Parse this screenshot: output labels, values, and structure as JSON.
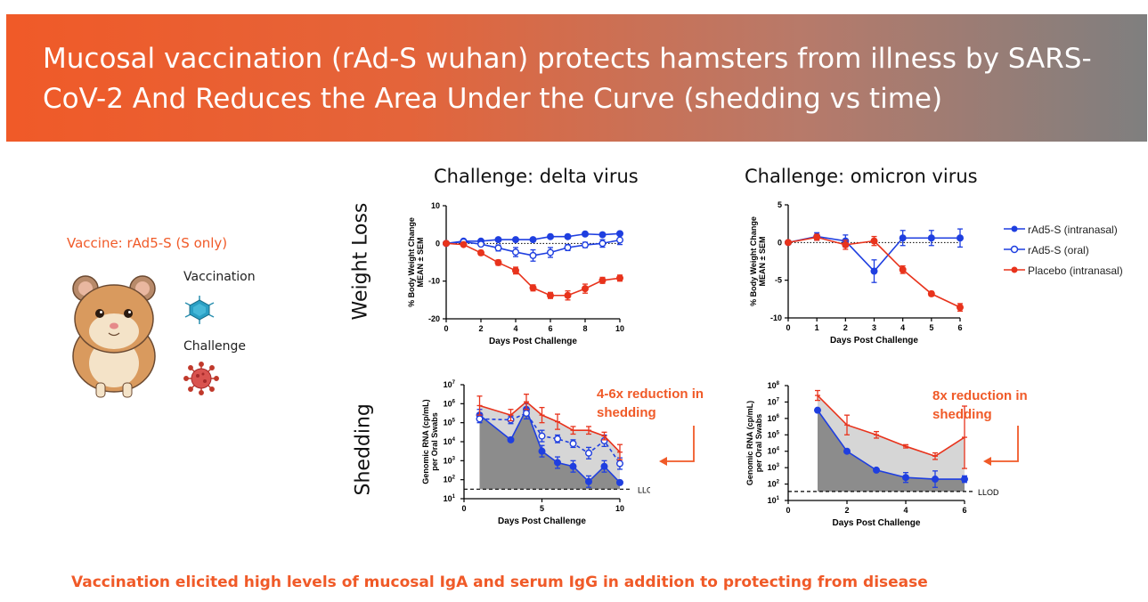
{
  "header": {
    "title": "Mucosal vaccination (rAd-S wuhan) protects hamsters from illness by SARS-CoV-2 And Reduces the Area Under the Curve (shedding vs time)",
    "background_start": "#f05a28",
    "background_end": "#7f7f7f"
  },
  "left_panel": {
    "vaccine_label": "Vaccine: rAd5-S (S only)",
    "vaccination_label": "Vaccination",
    "challenge_label": "Challenge",
    "icons": [
      "hamster-icon",
      "vaccine-virus-icon",
      "coronavirus-icon"
    ]
  },
  "columns": {
    "delta_title": "Challenge: delta virus",
    "omicron_title": "Challenge: omicron virus"
  },
  "rows": {
    "weight_loss": "Weight Loss",
    "shedding": "Shedding"
  },
  "annotations": {
    "delta_reduction": "4-6x reduction in shedding",
    "omicron_reduction": "8x reduction in shedding"
  },
  "footer": "Vaccination elicited high levels of mucosal IgA and serum IgG in addition to protecting from disease",
  "colors": {
    "blue": "#1f3fe0",
    "red": "#e8331c",
    "orange": "#f05a28"
  },
  "chart_data": [
    {
      "id": "delta_weight",
      "type": "line",
      "title": "Challenge: delta virus",
      "xlabel": "Days Post Challenge",
      "ylabel_line1": "% Body Weight Change",
      "ylabel_line2": "MEAN ± SEM",
      "xlim": [
        0,
        10
      ],
      "ylim": [
        -20,
        10
      ],
      "xticks": [
        0,
        2,
        4,
        6,
        8,
        10
      ],
      "yticks": [
        10,
        0,
        -10,
        -20
      ],
      "x": [
        0,
        1,
        2,
        3,
        4,
        5,
        6,
        7,
        8,
        9,
        10
      ],
      "series": [
        {
          "name": "rAd5-S (intranasal)",
          "values": [
            0,
            0.6,
            0.6,
            1.0,
            1.0,
            1.0,
            1.8,
            1.8,
            2.5,
            2.3,
            2.6
          ],
          "err": [
            0,
            0.5,
            0.5,
            0.4,
            0.4,
            0.4,
            0.5,
            0.5,
            0.5,
            0.5,
            0.5
          ]
        },
        {
          "name": "rAd5-S (oral)",
          "values": [
            0,
            0.4,
            -0.2,
            -1.2,
            -2.3,
            -3.2,
            -2.4,
            -1.1,
            -0.4,
            0.0,
            0.9
          ],
          "err": [
            0,
            0.4,
            0.5,
            0.8,
            1.2,
            1.5,
            1.3,
            0.8,
            0.7,
            1.0,
            1.2
          ]
        },
        {
          "name": "Placebo (intranasal)",
          "values": [
            0,
            -0.3,
            -2.5,
            -5.1,
            -7.2,
            -11.8,
            -13.8,
            -13.8,
            -12.0,
            -9.8,
            -9.2
          ],
          "err": [
            0,
            0.4,
            0.6,
            0.7,
            0.9,
            0.8,
            0.8,
            1.2,
            1.2,
            0.8,
            0.8
          ]
        }
      ]
    },
    {
      "id": "omicron_weight",
      "type": "line",
      "title": "Challenge: omicron virus",
      "xlabel": "Days Post Challenge",
      "ylabel_line1": "% Body Weight Change",
      "ylabel_line2": "MEAN ± SEM",
      "xlim": [
        0,
        6
      ],
      "ylim": [
        -10,
        5
      ],
      "xticks": [
        0,
        1,
        2,
        3,
        4,
        5,
        6
      ],
      "yticks": [
        5,
        0,
        -5,
        -10
      ],
      "x": [
        0,
        1,
        2,
        3,
        4,
        5,
        6
      ],
      "series": [
        {
          "name": "rAd5-S (intranasal)",
          "values": [
            0,
            0.8,
            0.2,
            -3.8,
            0.6,
            0.6,
            0.6
          ],
          "err": [
            0,
            0.5,
            0.8,
            1.5,
            1.0,
            1.0,
            1.2
          ]
        },
        {
          "name": "Placebo (intranasal)",
          "values": [
            0,
            0.7,
            -0.3,
            0.2,
            -3.6,
            -6.8,
            -8.6
          ],
          "err": [
            0,
            0.4,
            0.6,
            0.6,
            0.5,
            0.3,
            0.5
          ]
        }
      ]
    },
    {
      "id": "delta_shedding",
      "type": "area",
      "xlabel": "Days Post Challenge",
      "ylabel_line1": "Genomic RNA (cp/mL)",
      "ylabel_line2": "per Oral Swabs",
      "xlim": [
        0,
        10
      ],
      "ylim_log10": [
        1,
        7
      ],
      "xticks": [
        0,
        5,
        10
      ],
      "ytick_exps": [
        7,
        6,
        5,
        4,
        3,
        2,
        1
      ],
      "llod": 1.5,
      "llod_label": "LLOD",
      "series": [
        {
          "name": "rAd5-S (intranasal)",
          "x": [
            1,
            3,
            4,
            5,
            6,
            7,
            8,
            9,
            10
          ],
          "log10": [
            5.4,
            4.1,
            5.7,
            3.5,
            2.9,
            2.7,
            1.9,
            2.7,
            1.85
          ],
          "err": [
            0.3,
            0,
            0.3,
            0.3,
            0.3,
            0.3,
            0.3,
            0.3,
            0
          ]
        },
        {
          "name": "rAd5-S (oral)",
          "x": [
            1,
            3,
            4,
            5,
            6,
            7,
            8,
            9,
            10
          ],
          "log10": [
            5.2,
            5.15,
            5.5,
            4.3,
            4.15,
            3.9,
            3.4,
            4.05,
            2.85
          ],
          "err": [
            0.2,
            0.2,
            0.3,
            0.3,
            0.2,
            0.2,
            0.3,
            0.3,
            0.3
          ]
        },
        {
          "name": "Placebo (intranasal)",
          "x": [
            1,
            3,
            4,
            5,
            6,
            7,
            8,
            9,
            10
          ],
          "log10": [
            5.9,
            5.4,
            6.1,
            5.4,
            5.05,
            4.6,
            4.6,
            4.3,
            3.45
          ],
          "err": [
            0.5,
            0.3,
            0.4,
            0.4,
            0.4,
            0.2,
            0.2,
            0.2,
            0.4
          ]
        }
      ]
    },
    {
      "id": "omicron_shedding",
      "type": "area",
      "xlabel": "Days Post Challenge",
      "ylabel_line1": "Genomic RNA (cp/mL)",
      "ylabel_line2": "per Oral Swabs",
      "xlim": [
        0,
        6
      ],
      "ylim_log10": [
        1,
        8
      ],
      "xticks": [
        0,
        2,
        4,
        6
      ],
      "ytick_exps": [
        8,
        7,
        6,
        5,
        4,
        3,
        2,
        1
      ],
      "llod": 1.55,
      "llod_label": "LLOD",
      "series": [
        {
          "name": "rAd5-S (intranasal)",
          "x": [
            1,
            2,
            3,
            4,
            5,
            6
          ],
          "log10": [
            6.5,
            4.0,
            2.85,
            2.4,
            2.3,
            2.3
          ],
          "err": [
            0.1,
            0.1,
            0.1,
            0.3,
            0.5,
            0.2
          ]
        },
        {
          "name": "Placebo (intranasal)",
          "x": [
            1,
            2,
            3,
            4,
            5,
            6
          ],
          "log10": [
            7.4,
            5.6,
            5.0,
            4.3,
            3.7,
            4.85
          ],
          "err": [
            0.3,
            0.6,
            0.2,
            0.1,
            0.2,
            1.9
          ]
        }
      ]
    }
  ],
  "legend": [
    {
      "name": "rAd5-S (intranasal)",
      "color": "#1f3fe0",
      "marker": "filled-circle",
      "dash": false
    },
    {
      "name": "rAd5-S (oral)",
      "color": "#1f3fe0",
      "marker": "open-circle",
      "dash": true
    },
    {
      "name": "Placebo (intranasal)",
      "color": "#e8331c",
      "marker": "filled-circle",
      "dash": false
    }
  ]
}
